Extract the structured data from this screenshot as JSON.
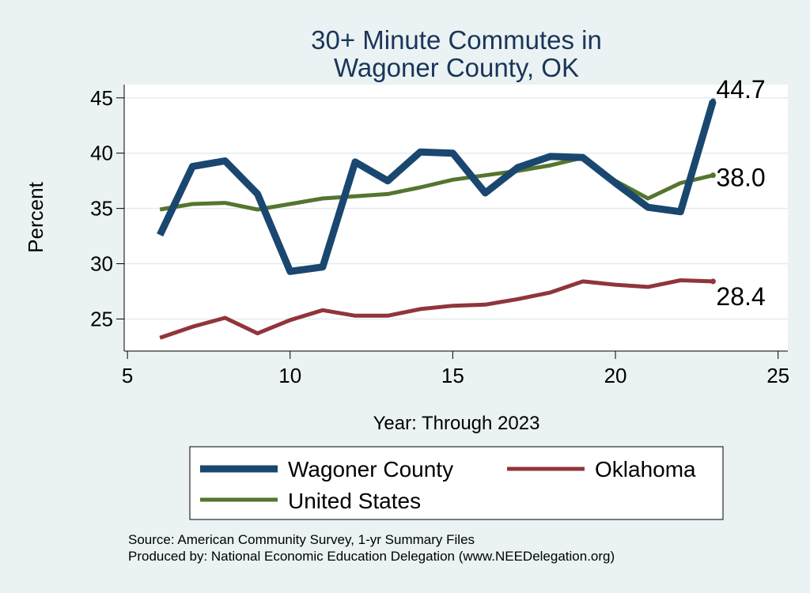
{
  "chart_data": {
    "type": "line",
    "title": [
      "30+ Minute Commutes in",
      "Wagoner County, OK"
    ],
    "xlabel": "Year: Through 2023",
    "ylabel": "Percent",
    "xlim": [
      4.9,
      25.3
    ],
    "ylim": [
      22.1,
      46.2
    ],
    "xticks": [
      5,
      10,
      15,
      20,
      25
    ],
    "yticks": [
      25,
      30,
      35,
      40,
      45
    ],
    "grid": "horizontal",
    "legend_position": "bottom",
    "series": [
      {
        "name": "Wagoner County",
        "color": "#1a476f",
        "x": [
          6,
          7,
          8,
          9,
          10,
          11,
          12,
          13,
          14,
          15,
          16,
          17,
          18,
          19,
          20,
          21,
          22,
          23
        ],
        "values": [
          32.6,
          38.8,
          39.3,
          36.3,
          29.3,
          29.7,
          39.2,
          37.5,
          40.1,
          40.0,
          36.4,
          38.7,
          39.7,
          39.6,
          37.3,
          35.1,
          34.7,
          44.7
        ],
        "end_label": "44.7"
      },
      {
        "name": "Oklahoma",
        "color": "#90353b",
        "x": [
          6,
          7,
          8,
          9,
          10,
          11,
          12,
          13,
          14,
          15,
          16,
          17,
          18,
          19,
          20,
          21,
          22,
          23
        ],
        "values": [
          23.3,
          24.3,
          25.1,
          23.7,
          24.9,
          25.8,
          25.3,
          25.3,
          25.9,
          26.2,
          26.3,
          26.8,
          27.4,
          28.4,
          28.1,
          27.9,
          28.5,
          28.4
        ],
        "end_label": "28.4"
      },
      {
        "name": "United States",
        "color": "#55752f",
        "x": [
          6,
          7,
          8,
          9,
          10,
          11,
          12,
          13,
          14,
          15,
          16,
          17,
          18,
          19,
          20,
          21,
          22,
          23
        ],
        "values": [
          34.9,
          35.4,
          35.5,
          34.9,
          35.4,
          35.9,
          36.1,
          36.3,
          36.9,
          37.6,
          38.0,
          38.4,
          38.9,
          39.6,
          37.5,
          35.9,
          37.3,
          38.0
        ],
        "end_label": "38.0"
      }
    ],
    "source_lines": [
      "Source: American Community Survey, 1-yr Summary Files",
      "Produced by: National Economic Education Delegation (www.NEEDelegation.org)"
    ]
  }
}
